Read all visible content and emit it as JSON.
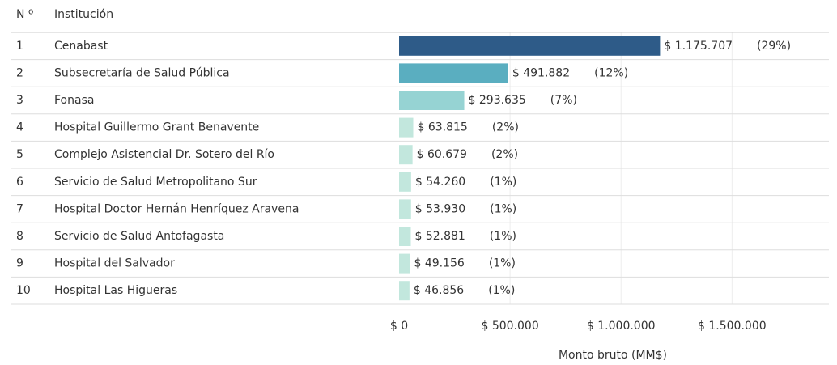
{
  "chart_data": {
    "type": "bar",
    "columns": [
      "N º",
      "Institución"
    ],
    "numbers": [
      "1",
      "2",
      "3",
      "4",
      "5",
      "6",
      "7",
      "8",
      "9",
      "10"
    ],
    "categories": [
      "Cenabast",
      "Subsecretaría de Salud Pública",
      "Fonasa",
      "Hospital Guillermo Grant Benavente",
      "Complejo Asistencial Dr. Sotero del Río",
      "Servicio de Salud Metropolitano Sur",
      "Hospital Doctor Hernán Henríquez Aravena",
      "Servicio de Salud Antofagasta",
      "Hospital del Salvador",
      "Hospital Las Higueras"
    ],
    "values": [
      1175707,
      491882,
      293635,
      63815,
      60679,
      54260,
      53930,
      52881,
      49156,
      46856
    ],
    "value_labels": [
      "$ 1.175.707",
      "$ 491.882",
      "$ 293.635",
      "$ 63.815",
      "$ 60.679",
      "$ 54.260",
      "$ 53.930",
      "$ 52.881",
      "$ 49.156",
      "$ 46.856"
    ],
    "percent": [
      29,
      12,
      7,
      2,
      2,
      1,
      1,
      1,
      1,
      1
    ],
    "percent_labels": [
      "(29%)",
      "(12%)",
      "(7%)",
      "(2%)",
      "(2%)",
      "(1%)",
      "(1%)",
      "(1%)",
      "(1%)",
      "(1%)"
    ],
    "colors": [
      "#2e5b88",
      "#5aaec0",
      "#96d3d3",
      "#c2e7dd",
      "#c2e7dd",
      "#c2e7dd",
      "#c2e7dd",
      "#c2e7dd",
      "#c2e7dd",
      "#c2e7dd"
    ],
    "xlim": [
      0,
      1940000
    ],
    "xticks": [
      {
        "value": 0,
        "label": "$ 0"
      },
      {
        "value": 500000,
        "label": "$ 500.000"
      },
      {
        "value": 1000000,
        "label": "$ 1.000.000"
      },
      {
        "value": 1500000,
        "label": "$ 1.500.000"
      }
    ],
    "x_label": "Monto bruto (MM$)",
    "grid": true
  }
}
